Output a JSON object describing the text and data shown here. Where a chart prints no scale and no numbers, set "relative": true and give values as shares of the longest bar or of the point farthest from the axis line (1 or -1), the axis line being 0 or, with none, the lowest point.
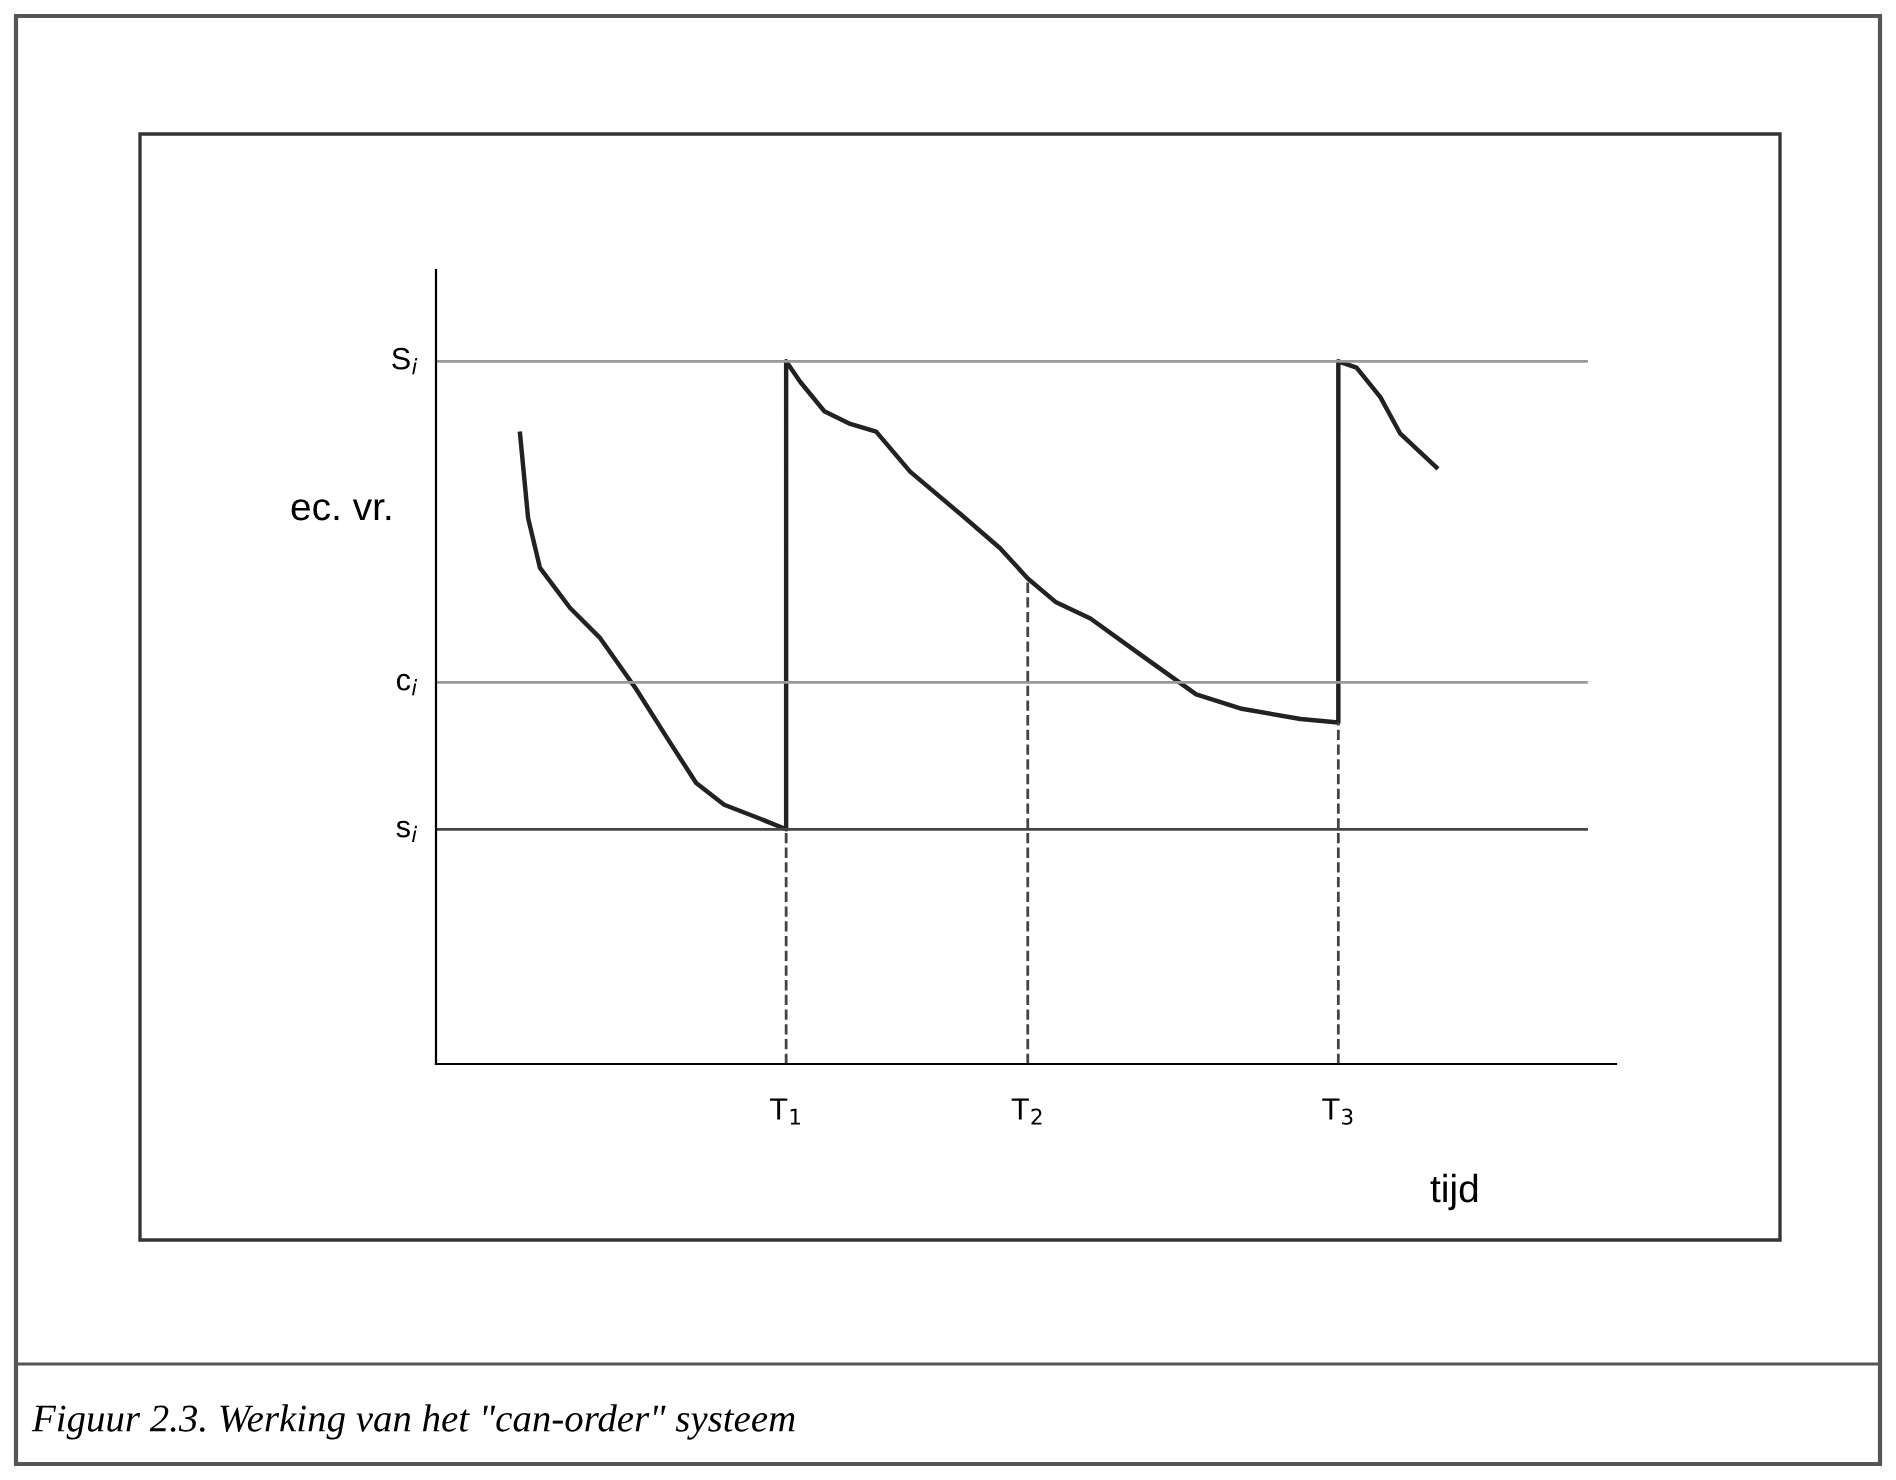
{
  "chart_data": {
    "type": "line",
    "relative": true,
    "ylabel": "ec. vr.",
    "xlabel": "tijd",
    "x": [
      0.24,
      0.263,
      0.297,
      0.383,
      0.469,
      0.571,
      0.669,
      0.743,
      0.823,
      0.926,
      1.0,
      1.0,
      1.04,
      1.109,
      1.183,
      1.257,
      1.354,
      1.497,
      1.611,
      1.69,
      1.771,
      1.869,
      2.011,
      2.171,
      2.297,
      2.469,
      2.577,
      2.577,
      2.629,
      2.697,
      2.754,
      2.857
    ],
    "series": [
      {
        "color": "#222222",
        "values": [
          0.897,
          0.777,
          0.706,
          0.649,
          0.606,
          0.534,
          0.457,
          0.4,
          0.369,
          0.349,
          0.334,
          1.0,
          0.971,
          0.929,
          0.911,
          0.9,
          0.843,
          0.783,
          0.734,
          0.691,
          0.657,
          0.634,
          0.583,
          0.526,
          0.506,
          0.491,
          0.486,
          1.0,
          0.991,
          0.949,
          0.897,
          0.849
        ]
      }
    ],
    "xlim": [
      0,
      3.37
    ],
    "xticks": [
      {
        "value": 1.0,
        "label": "T$_{1}$"
      },
      {
        "value": 1.69,
        "label": "T$_{2}$"
      },
      {
        "value": 2.577,
        "label": "T$_{3}$"
      }
    ],
    "ref_lines": [
      {
        "axis": "y",
        "value": 1.0,
        "label": "S$_{i}$",
        "color": "#999999"
      },
      {
        "axis": "y",
        "value": 0.543,
        "label": "c$_{i}$",
        "color": "#999999"
      },
      {
        "axis": "y",
        "value": 0.334,
        "label": "s$_{i}$",
        "color": "#444444"
      },
      {
        "axis": "x",
        "value": 1.0,
        "color": "#444444",
        "line_style": "dashed"
      },
      {
        "axis": "x",
        "value": 1.69,
        "color": "#444444",
        "line_style": "dashed"
      },
      {
        "axis": "x",
        "value": 2.577,
        "color": "#444444",
        "line_style": "dashed"
      }
    ],
    "grid": false,
    "legend": false,
    "marker": "none",
    "line_style": "solid",
    "annotations": [
      "Figuur 2.3. Werking van het \"can-order\" systeem"
    ]
  }
}
